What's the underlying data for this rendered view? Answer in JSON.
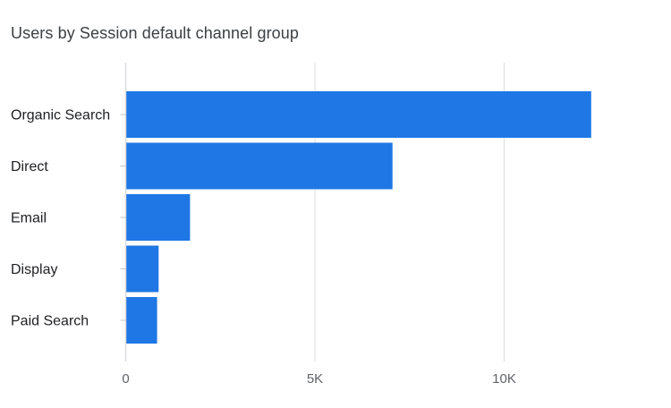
{
  "title": "Users by Session default channel group",
  "colors": {
    "bar": "#1f77e5",
    "grid": "#dadce0",
    "tick": "#bdc1c6"
  },
  "chart_data": {
    "type": "bar",
    "orientation": "horizontal",
    "title": "Users by Session default channel group",
    "categories": [
      "Organic Search",
      "Direct",
      "Email",
      "Display",
      "Paid Search"
    ],
    "values": [
      12300,
      7050,
      1700,
      870,
      830
    ],
    "xlim": [
      0,
      13500
    ],
    "x_ticks": [
      {
        "value": 0,
        "label": "0"
      },
      {
        "value": 5000,
        "label": "5K"
      },
      {
        "value": 10000,
        "label": "10K"
      }
    ],
    "grid": true,
    "legend": "none",
    "xlabel": "",
    "ylabel": ""
  }
}
